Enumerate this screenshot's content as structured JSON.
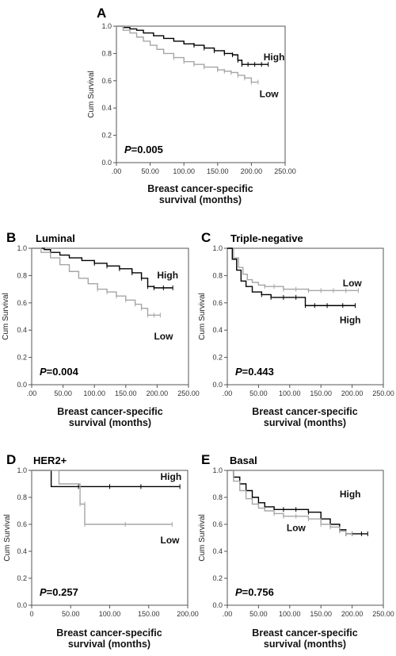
{
  "figure": {
    "p_prefix": "P"
  },
  "chart_data": [
    {
      "type": "line",
      "panel_letter": "A",
      "title": "",
      "xlabel": "Breast cancer-specific survival (months)",
      "ylabel": "Cum Survival",
      "p_value": "=0.005",
      "xlim": [
        0,
        250
      ],
      "ylim": [
        0,
        1
      ],
      "x_ticks": [
        ".00",
        "50.00",
        "100.00",
        "150.00",
        "200.00",
        "250.00"
      ],
      "y_ticks": [
        "0.0",
        "0.2",
        "0.4",
        "0.6",
        "0.8",
        "1.0"
      ],
      "series": [
        {
          "name": "High",
          "color": "#000000",
          "x": [
            0,
            10,
            20,
            30,
            40,
            55,
            70,
            85,
            100,
            115,
            130,
            145,
            160,
            172,
            180,
            186,
            195,
            205,
            215,
            225
          ],
          "y": [
            1.0,
            0.99,
            0.98,
            0.97,
            0.95,
            0.93,
            0.91,
            0.89,
            0.87,
            0.86,
            0.84,
            0.82,
            0.8,
            0.79,
            0.75,
            0.72,
            0.72,
            0.72,
            0.72,
            0.72
          ]
        },
        {
          "name": "Low",
          "color": "#a6a6a6",
          "x": [
            0,
            10,
            20,
            30,
            40,
            50,
            60,
            70,
            85,
            100,
            115,
            130,
            150,
            160,
            170,
            180,
            190,
            200,
            210
          ],
          "y": [
            1.0,
            0.97,
            0.95,
            0.92,
            0.89,
            0.86,
            0.83,
            0.8,
            0.77,
            0.74,
            0.72,
            0.7,
            0.68,
            0.67,
            0.66,
            0.64,
            0.62,
            0.59,
            0.59
          ]
        }
      ]
    },
    {
      "type": "line",
      "panel_letter": "B",
      "title": "Luminal",
      "xlabel": "Breast cancer-specific survival (months)",
      "ylabel": "Cum Survival",
      "p_value": "=0.004",
      "xlim": [
        0,
        250
      ],
      "ylim": [
        0,
        1
      ],
      "x_ticks": [
        ".00",
        "50.00",
        "100.00",
        "150.00",
        "200.00",
        "250.00"
      ],
      "y_ticks": [
        "0.0",
        "0.2",
        "0.4",
        "0.6",
        "0.8",
        "1.0"
      ],
      "series": [
        {
          "name": "High",
          "color": "#000000",
          "x": [
            0,
            10,
            20,
            30,
            45,
            60,
            80,
            100,
            120,
            140,
            160,
            175,
            185,
            195,
            210,
            225
          ],
          "y": [
            1.0,
            1.0,
            0.99,
            0.97,
            0.95,
            0.93,
            0.91,
            0.89,
            0.87,
            0.85,
            0.82,
            0.78,
            0.72,
            0.71,
            0.71,
            0.71
          ]
        },
        {
          "name": "Low",
          "color": "#a6a6a6",
          "x": [
            0,
            15,
            30,
            45,
            60,
            75,
            90,
            105,
            120,
            135,
            150,
            165,
            175,
            185,
            195,
            205
          ],
          "y": [
            1.0,
            0.97,
            0.93,
            0.88,
            0.83,
            0.78,
            0.74,
            0.7,
            0.68,
            0.65,
            0.62,
            0.59,
            0.56,
            0.51,
            0.51,
            0.51
          ]
        }
      ]
    },
    {
      "type": "line",
      "panel_letter": "C",
      "title": "Triple-negative",
      "xlabel": "Breast cancer-specific survival (months)",
      "ylabel": "Cum Survival",
      "p_value": "=0.443",
      "xlim": [
        0,
        250
      ],
      "ylim": [
        0,
        1
      ],
      "x_ticks": [
        ".00",
        "50.00",
        "100.00",
        "150.00",
        "200.00",
        "250.00"
      ],
      "y_ticks": [
        "0.0",
        "0.2",
        "0.4",
        "0.6",
        "0.8",
        "1.0"
      ],
      "series": [
        {
          "name": "Low",
          "color": "#a6a6a6",
          "x": [
            0,
            10,
            18,
            25,
            32,
            40,
            50,
            60,
            75,
            90,
            110,
            130,
            150,
            170,
            190,
            210
          ],
          "y": [
            1.0,
            0.93,
            0.86,
            0.81,
            0.77,
            0.75,
            0.73,
            0.72,
            0.72,
            0.7,
            0.7,
            0.69,
            0.69,
            0.69,
            0.69,
            0.69
          ]
        },
        {
          "name": "High",
          "color": "#000000",
          "x": [
            0,
            8,
            15,
            22,
            30,
            40,
            55,
            70,
            90,
            110,
            125,
            140,
            160,
            185,
            205
          ],
          "y": [
            1.0,
            0.92,
            0.84,
            0.76,
            0.72,
            0.68,
            0.66,
            0.64,
            0.64,
            0.64,
            0.58,
            0.58,
            0.58,
            0.58,
            0.58
          ]
        }
      ]
    },
    {
      "type": "line",
      "panel_letter": "D",
      "title": "HER2+",
      "xlabel": "Breast cancer-specific survival (months)",
      "ylabel": "Cum Survival",
      "p_value": "=0.257",
      "xlim": [
        0,
        200
      ],
      "ylim": [
        0,
        1
      ],
      "x_ticks": [
        "0",
        "50.00",
        "100.00",
        "150.00",
        "200.00"
      ],
      "y_ticks": [
        "0.0",
        "0.2",
        "0.4",
        "0.6",
        "0.8",
        "1.0"
      ],
      "series": [
        {
          "name": "High",
          "color": "#000000",
          "x": [
            0,
            25,
            25,
            60,
            100,
            140,
            190
          ],
          "y": [
            1.0,
            1.0,
            0.88,
            0.88,
            0.88,
            0.88,
            0.88
          ]
        },
        {
          "name": "Low",
          "color": "#a6a6a6",
          "x": [
            0,
            35,
            35,
            62,
            62,
            68,
            68,
            120,
            180
          ],
          "y": [
            1.0,
            1.0,
            0.9,
            0.9,
            0.75,
            0.75,
            0.6,
            0.6,
            0.6
          ]
        }
      ]
    },
    {
      "type": "line",
      "panel_letter": "E",
      "title": "Basal",
      "xlabel": "Breast cancer-specific survival (months)",
      "ylabel": "Cum Survival",
      "p_value": "=0.756",
      "xlim": [
        0,
        250
      ],
      "ylim": [
        0,
        1
      ],
      "x_ticks": [
        ".00",
        "50.00",
        "100.00",
        "150.00",
        "200.00",
        "250.00"
      ],
      "y_ticks": [
        "0.0",
        "0.2",
        "0.4",
        "0.6",
        "0.8",
        "1.0"
      ],
      "series": [
        {
          "name": "High",
          "color": "#000000",
          "x": [
            0,
            10,
            20,
            30,
            40,
            50,
            60,
            75,
            90,
            110,
            130,
            150,
            165,
            180,
            190,
            200,
            215,
            225
          ],
          "y": [
            1.0,
            0.95,
            0.9,
            0.85,
            0.8,
            0.76,
            0.73,
            0.71,
            0.71,
            0.71,
            0.69,
            0.64,
            0.6,
            0.56,
            0.53,
            0.53,
            0.53,
            0.53
          ]
        },
        {
          "name": "Low",
          "color": "#a6a6a6",
          "x": [
            0,
            10,
            20,
            30,
            40,
            50,
            60,
            75,
            90,
            110,
            130,
            150,
            165,
            180,
            190,
            200
          ],
          "y": [
            1.0,
            0.92,
            0.85,
            0.79,
            0.75,
            0.72,
            0.7,
            0.68,
            0.66,
            0.66,
            0.64,
            0.6,
            0.58,
            0.55,
            0.53,
            0.53
          ]
        }
      ]
    }
  ]
}
